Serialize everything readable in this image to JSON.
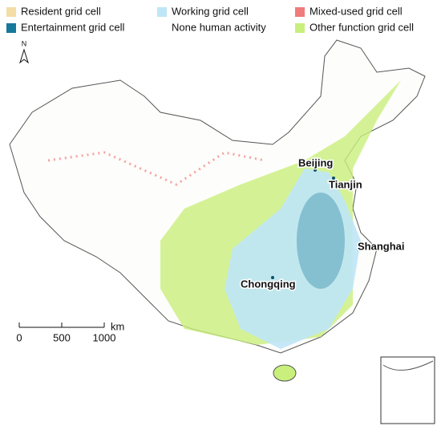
{
  "legend": [
    {
      "label": "Resident grid cell",
      "color": "#f3dea6"
    },
    {
      "label": "Entertainment grid cell",
      "color": "#17799b"
    },
    {
      "label": "Working grid cell",
      "color": "#bfe6f7"
    },
    {
      "label": "None human activity",
      "color": "#ffffff"
    },
    {
      "label": "Mixed-used grid cell",
      "color": "#ef7b7b"
    },
    {
      "label": "Other function grid cell",
      "color": "#c9ef7c"
    }
  ],
  "north": "N",
  "cities": [
    "Beijing",
    "Tianjin",
    "Shanghai",
    "Chongqing"
  ],
  "scale": {
    "ticks": [
      0,
      500,
      1000
    ],
    "unit": "km"
  }
}
